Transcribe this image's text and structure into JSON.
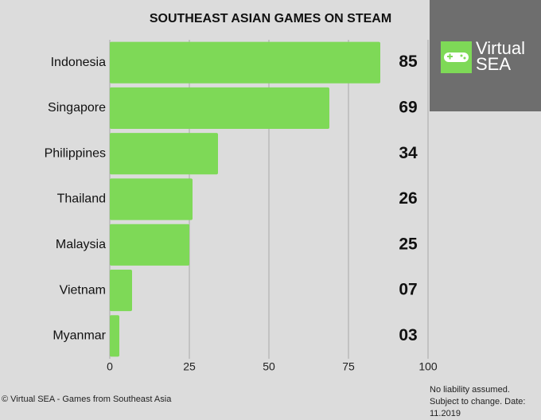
{
  "chart_data": {
    "type": "bar",
    "orientation": "horizontal",
    "title": "SOUTHEAST ASIAN GAMES ON STEAM",
    "categories": [
      "Indonesia",
      "Singapore",
      "Philippines",
      "Thailand",
      "Malaysia",
      "Vietnam",
      "Myanmar"
    ],
    "values": [
      85,
      69,
      34,
      26,
      25,
      7,
      3
    ],
    "value_labels": [
      "85",
      "69",
      "34",
      "26",
      "25",
      "07",
      "03"
    ],
    "color": "#7ed957",
    "xlim": [
      0,
      100
    ],
    "xticks": [
      0,
      25,
      50,
      75,
      100
    ],
    "grid": true
  },
  "logo": {
    "line1": "Virtual",
    "line2": "SEA"
  },
  "footer": "© Virtual SEA - Games from Southeast Asia",
  "note": "No liability assumed. Subject to change. Date: 11.2019"
}
